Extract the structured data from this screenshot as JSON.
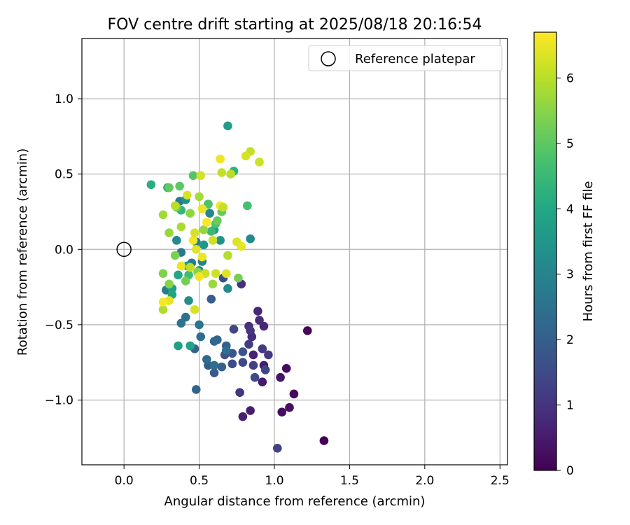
{
  "chart_data": {
    "type": "scatter",
    "title": "FOV centre drift starting at 2025/08/18 20:16:54",
    "xlabel": "Angular distance from reference (arcmin)",
    "ylabel": "Rotation from reference (arcmin)",
    "xlim": [
      -0.28,
      2.55
    ],
    "ylim": [
      -1.43,
      1.4
    ],
    "xticks": [
      0.0,
      0.5,
      1.0,
      1.5,
      2.0,
      2.5
    ],
    "xtick_labels": [
      "0.0",
      "0.5",
      "1.0",
      "1.5",
      "2.0",
      "2.5"
    ],
    "yticks": [
      -1.0,
      -0.5,
      0.0,
      0.5,
      1.0
    ],
    "ytick_labels": [
      "−1.0",
      "−0.5",
      "0.0",
      "0.5",
      "1.0"
    ],
    "grid": true,
    "legend": {
      "position": "top-right",
      "entries": [
        {
          "label": "Reference platepar",
          "marker": "open-circle"
        }
      ]
    },
    "reference_point": {
      "x": 0.0,
      "y": 0.0
    },
    "colorbar": {
      "label": "Hours from first FF file",
      "colormap": "viridis",
      "range": [
        0,
        6.7
      ],
      "ticks": [
        0,
        1,
        2,
        3,
        4,
        5,
        6
      ],
      "tick_labels": [
        "0",
        "1",
        "2",
        "3",
        "4",
        "5",
        "6"
      ]
    },
    "points": [
      {
        "x": 1.33,
        "y": -1.27,
        "c": 0.05
      },
      {
        "x": 1.22,
        "y": -0.54,
        "c": 0.1
      },
      {
        "x": 1.13,
        "y": -0.96,
        "c": 0.15
      },
      {
        "x": 1.08,
        "y": -0.79,
        "c": 0.2
      },
      {
        "x": 1.05,
        "y": -1.08,
        "c": 0.25
      },
      {
        "x": 1.1,
        "y": -1.05,
        "c": 0.3
      },
      {
        "x": 1.04,
        "y": -0.85,
        "c": 0.35
      },
      {
        "x": 0.92,
        "y": -0.88,
        "c": 0.45
      },
      {
        "x": 0.93,
        "y": -0.77,
        "c": 0.5
      },
      {
        "x": 0.84,
        "y": -1.07,
        "c": 0.55
      },
      {
        "x": 0.79,
        "y": -1.11,
        "c": 0.6
      },
      {
        "x": 0.86,
        "y": -0.7,
        "c": 0.65
      },
      {
        "x": 0.93,
        "y": -0.51,
        "c": 0.7
      },
      {
        "x": 0.89,
        "y": -0.41,
        "c": 0.75
      },
      {
        "x": 0.9,
        "y": -0.47,
        "c": 0.8
      },
      {
        "x": 0.85,
        "y": -0.58,
        "c": 0.85
      },
      {
        "x": 0.83,
        "y": -0.51,
        "c": 0.9
      },
      {
        "x": 0.78,
        "y": -0.23,
        "c": 0.95
      },
      {
        "x": 0.77,
        "y": -0.95,
        "c": 1.0
      },
      {
        "x": 0.84,
        "y": -0.54,
        "c": 1.05
      },
      {
        "x": 0.96,
        "y": -0.7,
        "c": 1.1
      },
      {
        "x": 0.92,
        "y": -0.66,
        "c": 1.15
      },
      {
        "x": 0.83,
        "y": -0.63,
        "c": 1.2
      },
      {
        "x": 0.86,
        "y": -0.77,
        "c": 1.25
      },
      {
        "x": 1.02,
        "y": -1.32,
        "c": 1.3
      },
      {
        "x": 0.94,
        "y": -0.8,
        "c": 1.35
      },
      {
        "x": 0.73,
        "y": -0.53,
        "c": 1.4
      },
      {
        "x": 0.79,
        "y": -0.75,
        "c": 1.5
      },
      {
        "x": 0.87,
        "y": -0.85,
        "c": 1.55
      },
      {
        "x": 0.72,
        "y": -0.76,
        "c": 1.6
      },
      {
        "x": 0.66,
        "y": -0.19,
        "c": 1.65
      },
      {
        "x": 0.67,
        "y": -0.7,
        "c": 1.7
      },
      {
        "x": 0.79,
        "y": -0.68,
        "c": 1.75
      },
      {
        "x": 0.72,
        "y": -0.69,
        "c": 1.8
      },
      {
        "x": 0.6,
        "y": -0.82,
        "c": 1.85
      },
      {
        "x": 0.56,
        "y": -0.77,
        "c": 1.9
      },
      {
        "x": 0.58,
        "y": -0.33,
        "c": 1.95
      },
      {
        "x": 0.65,
        "y": -0.78,
        "c": 2.0
      },
      {
        "x": 0.68,
        "y": -0.64,
        "c": 2.05
      },
      {
        "x": 0.47,
        "y": -0.66,
        "c": 2.1
      },
      {
        "x": 0.48,
        "y": -0.93,
        "c": 2.15
      },
      {
        "x": 0.6,
        "y": -0.61,
        "c": 2.2
      },
      {
        "x": 0.62,
        "y": -0.6,
        "c": 2.25
      },
      {
        "x": 0.55,
        "y": -0.73,
        "c": 2.3
      },
      {
        "x": 0.51,
        "y": -0.58,
        "c": 2.35
      },
      {
        "x": 0.68,
        "y": -0.67,
        "c": 2.4
      },
      {
        "x": 0.6,
        "y": -0.77,
        "c": 2.45
      },
      {
        "x": 0.41,
        "y": -0.45,
        "c": 2.5
      },
      {
        "x": 0.38,
        "y": -0.49,
        "c": 2.55
      },
      {
        "x": 0.5,
        "y": -0.5,
        "c": 2.6
      },
      {
        "x": 0.38,
        "y": -0.02,
        "c": 2.65
      },
      {
        "x": 0.37,
        "y": 0.32,
        "c": 2.7
      },
      {
        "x": 0.28,
        "y": -0.27,
        "c": 2.75
      },
      {
        "x": 0.45,
        "y": -0.09,
        "c": 2.8
      },
      {
        "x": 0.48,
        "y": 0.05,
        "c": 2.85
      },
      {
        "x": 0.56,
        "y": 0.3,
        "c": 2.9
      },
      {
        "x": 0.52,
        "y": -0.08,
        "c": 2.95
      },
      {
        "x": 0.5,
        "y": -0.14,
        "c": 3.0
      },
      {
        "x": 0.57,
        "y": 0.24,
        "c": 3.05
      },
      {
        "x": 0.35,
        "y": 0.06,
        "c": 3.1
      },
      {
        "x": 0.84,
        "y": 0.07,
        "c": 3.15
      },
      {
        "x": 0.69,
        "y": -0.26,
        "c": 3.2
      },
      {
        "x": 0.43,
        "y": -0.34,
        "c": 3.3
      },
      {
        "x": 0.41,
        "y": 0.33,
        "c": 3.35
      },
      {
        "x": 0.64,
        "y": 0.06,
        "c": 3.4
      },
      {
        "x": 0.53,
        "y": 0.03,
        "c": 3.5
      },
      {
        "x": 0.42,
        "y": -0.11,
        "c": 3.55
      },
      {
        "x": 0.6,
        "y": 0.13,
        "c": 3.6
      },
      {
        "x": 0.69,
        "y": 0.82,
        "c": 3.7
      },
      {
        "x": 0.32,
        "y": -0.26,
        "c": 3.75
      },
      {
        "x": 0.36,
        "y": -0.64,
        "c": 3.8
      },
      {
        "x": 0.44,
        "y": -0.64,
        "c": 3.85
      },
      {
        "x": 0.32,
        "y": -0.3,
        "c": 3.9
      },
      {
        "x": 0.36,
        "y": -0.17,
        "c": 4.0
      },
      {
        "x": 0.29,
        "y": 0.41,
        "c": 4.1
      },
      {
        "x": 0.18,
        "y": 0.43,
        "c": 4.2
      },
      {
        "x": 0.73,
        "y": 0.52,
        "c": 4.3
      },
      {
        "x": 0.38,
        "y": 0.26,
        "c": 4.4
      },
      {
        "x": 0.58,
        "y": 0.12,
        "c": 4.5
      },
      {
        "x": 0.43,
        "y": -0.17,
        "c": 4.6
      },
      {
        "x": 0.82,
        "y": 0.29,
        "c": 4.7
      },
      {
        "x": 0.61,
        "y": 0.17,
        "c": 4.75
      },
      {
        "x": 0.56,
        "y": 0.3,
        "c": 4.8
      },
      {
        "x": 0.46,
        "y": 0.49,
        "c": 4.9
      },
      {
        "x": 0.37,
        "y": 0.42,
        "c": 5.0
      },
      {
        "x": 0.3,
        "y": 0.41,
        "c": 5.05
      },
      {
        "x": 0.65,
        "y": 0.25,
        "c": 5.1
      },
      {
        "x": 0.62,
        "y": 0.19,
        "c": 5.15
      },
      {
        "x": 0.35,
        "y": 0.28,
        "c": 5.2
      },
      {
        "x": 0.41,
        "y": -0.21,
        "c": 5.25
      },
      {
        "x": 0.76,
        "y": -0.19,
        "c": 5.3
      },
      {
        "x": 0.34,
        "y": -0.04,
        "c": 5.35
      },
      {
        "x": 0.26,
        "y": -0.16,
        "c": 5.4
      },
      {
        "x": 0.49,
        "y": -0.15,
        "c": 5.45
      },
      {
        "x": 0.3,
        "y": -0.23,
        "c": 5.5
      },
      {
        "x": 0.44,
        "y": 0.24,
        "c": 5.55
      },
      {
        "x": 0.53,
        "y": 0.13,
        "c": 5.6
      },
      {
        "x": 0.3,
        "y": 0.11,
        "c": 5.65
      },
      {
        "x": 0.59,
        "y": -0.23,
        "c": 5.7
      },
      {
        "x": 0.26,
        "y": 0.23,
        "c": 5.75
      },
      {
        "x": 0.5,
        "y": 0.35,
        "c": 5.8
      },
      {
        "x": 0.38,
        "y": 0.15,
        "c": 5.85
      },
      {
        "x": 0.26,
        "y": -0.4,
        "c": 5.9
      },
      {
        "x": 0.69,
        "y": -0.04,
        "c": 5.95
      },
      {
        "x": 0.34,
        "y": 0.29,
        "c": 6.0
      },
      {
        "x": 0.44,
        "y": -0.12,
        "c": 6.05
      },
      {
        "x": 0.84,
        "y": 0.65,
        "c": 6.1
      },
      {
        "x": 0.54,
        "y": -0.16,
        "c": 6.15
      },
      {
        "x": 0.61,
        "y": -0.16,
        "c": 6.2
      },
      {
        "x": 0.51,
        "y": 0.49,
        "c": 6.25
      },
      {
        "x": 0.81,
        "y": 0.62,
        "c": 6.3
      },
      {
        "x": 0.75,
        "y": 0.05,
        "c": 6.35
      },
      {
        "x": 0.68,
        "y": -0.16,
        "c": 6.4
      },
      {
        "x": 0.3,
        "y": -0.34,
        "c": 6.45
      },
      {
        "x": 0.52,
        "y": 0.27,
        "c": 6.5
      },
      {
        "x": 0.64,
        "y": 0.6,
        "c": 6.55
      },
      {
        "x": 0.46,
        "y": 0.06,
        "c": 6.6
      },
      {
        "x": 0.5,
        "y": -0.18,
        "c": 6.62
      },
      {
        "x": 0.26,
        "y": -0.35,
        "c": 6.65
      },
      {
        "x": 0.55,
        "y": 0.18,
        "c": 6.68
      },
      {
        "x": 0.9,
        "y": 0.58,
        "c": 6.2
      },
      {
        "x": 0.65,
        "y": 0.51,
        "c": 6.1
      },
      {
        "x": 0.71,
        "y": 0.5,
        "c": 6.0
      },
      {
        "x": 0.47,
        "y": -0.4,
        "c": 6.3
      },
      {
        "x": 0.48,
        "y": 0.0,
        "c": 6.4
      },
      {
        "x": 0.52,
        "y": -0.05,
        "c": 6.5
      },
      {
        "x": 0.78,
        "y": 0.02,
        "c": 6.45
      },
      {
        "x": 0.47,
        "y": 0.11,
        "c": 6.3
      },
      {
        "x": 0.59,
        "y": 0.06,
        "c": 6.2
      },
      {
        "x": 0.38,
        "y": -0.11,
        "c": 6.5
      },
      {
        "x": 0.42,
        "y": 0.36,
        "c": 6.3
      },
      {
        "x": 0.64,
        "y": 0.29,
        "c": 6.6
      },
      {
        "x": 0.66,
        "y": 0.28,
        "c": 6.1
      }
    ]
  }
}
